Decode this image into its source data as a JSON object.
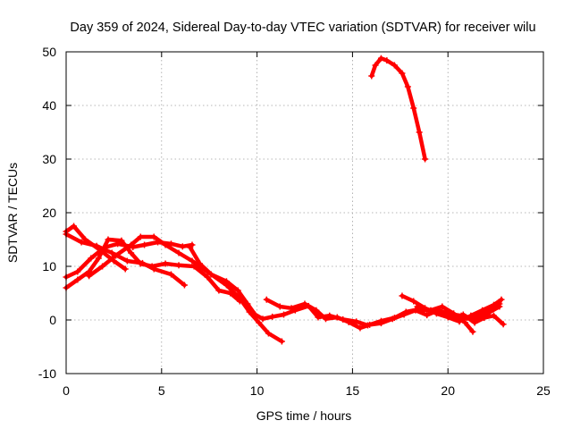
{
  "chart_data": {
    "type": "line",
    "title": "Day 359 of 2024, Sidereal Day-to-day VTEC variation (SDTVAR) for receiver wilu",
    "xlabel": "GPS time / hours",
    "ylabel": "SDTVAR / TECUs",
    "xlim": [
      0,
      25
    ],
    "ylim": [
      -10,
      50
    ],
    "x_ticks": [
      0,
      5,
      10,
      15,
      20,
      25
    ],
    "x_tick_labels": [
      "0",
      "5",
      "10",
      "15",
      "20",
      "25"
    ],
    "y_ticks": [
      -10,
      0,
      10,
      20,
      30,
      40,
      50
    ],
    "y_tick_labels": [
      "-10",
      "0",
      "10",
      "20",
      "30",
      "40",
      "50"
    ],
    "grid": true,
    "legend": "none",
    "colors": {
      "series": "#ff0000",
      "grid": "#a0a0a0",
      "axis": "#000000",
      "text": "#000000"
    },
    "series": [
      {
        "name": "trace-1",
        "points": [
          [
            0.0,
            16.5
          ],
          [
            0.4,
            17.5
          ],
          [
            1.0,
            15.0
          ],
          [
            1.8,
            13.0
          ],
          [
            2.5,
            11.0
          ],
          [
            3.1,
            9.5
          ]
        ]
      },
      {
        "name": "trace-2",
        "points": [
          [
            0.0,
            16.0
          ],
          [
            0.8,
            14.5
          ],
          [
            1.6,
            13.8
          ],
          [
            2.4,
            12.5
          ],
          [
            3.2,
            11.0
          ],
          [
            4.0,
            10.6
          ],
          [
            4.6,
            9.5
          ],
          [
            5.5,
            8.5
          ],
          [
            6.2,
            6.5
          ]
        ]
      },
      {
        "name": "trace-3",
        "points": [
          [
            0.0,
            8.0
          ],
          [
            0.6,
            9.0
          ],
          [
            1.3,
            11.5
          ],
          [
            2.0,
            13.5
          ],
          [
            2.7,
            14.2
          ],
          [
            3.5,
            13.6
          ],
          [
            4.1,
            14.0
          ],
          [
            4.8,
            14.5
          ],
          [
            5.5,
            14.2
          ],
          [
            6.1,
            13.7
          ],
          [
            6.6,
            14.0
          ]
        ]
      },
      {
        "name": "trace-4",
        "points": [
          [
            0.0,
            6.0
          ],
          [
            0.6,
            7.5
          ],
          [
            1.2,
            9.0
          ],
          [
            1.7,
            11.5
          ],
          [
            2.2,
            15.0
          ],
          [
            2.9,
            14.8
          ],
          [
            3.4,
            12.5
          ],
          [
            3.9,
            10.5
          ],
          [
            4.5,
            10.0
          ],
          [
            5.2,
            10.5
          ],
          [
            5.9,
            10.2
          ],
          [
            6.7,
            10.0
          ],
          [
            7.4,
            8.0
          ],
          [
            8.0,
            5.5
          ],
          [
            8.6,
            5.0
          ],
          [
            9.1,
            3.5
          ]
        ]
      },
      {
        "name": "trace-5",
        "points": [
          [
            1.2,
            8.2
          ],
          [
            1.9,
            10.0
          ],
          [
            2.6,
            12.0
          ],
          [
            3.4,
            14.0
          ],
          [
            3.9,
            15.5
          ],
          [
            4.6,
            15.5
          ],
          [
            5.2,
            14.0
          ],
          [
            5.9,
            12.5
          ],
          [
            6.6,
            11.0
          ],
          [
            7.4,
            9.0
          ],
          [
            8.4,
            6.5
          ],
          [
            9.1,
            4.0
          ],
          [
            9.6,
            1.5
          ],
          [
            10.1,
            -0.5
          ],
          [
            10.6,
            -2.5
          ],
          [
            11.3,
            -4.0
          ]
        ]
      },
      {
        "name": "trace-6",
        "points": [
          [
            6.5,
            13.5
          ],
          [
            7.0,
            10.5
          ],
          [
            7.6,
            8.5
          ],
          [
            8.4,
            7.2
          ],
          [
            9.0,
            5.5
          ],
          [
            9.5,
            3.0
          ],
          [
            9.9,
            1.0
          ],
          [
            10.3,
            0.2
          ],
          [
            10.8,
            0.6
          ],
          [
            11.4,
            1.0
          ],
          [
            12.0,
            1.8
          ],
          [
            12.7,
            2.6
          ],
          [
            13.2,
            0.5
          ],
          [
            13.8,
            0.8
          ],
          [
            14.5,
            0.1
          ],
          [
            15.2,
            -0.3
          ],
          [
            15.8,
            -1.0
          ],
          [
            16.5,
            -0.2
          ],
          [
            17.2,
            0.4
          ],
          [
            17.8,
            1.5
          ],
          [
            18.5,
            2.0
          ],
          [
            19.1,
            1.7
          ],
          [
            19.8,
            1.2
          ],
          [
            20.4,
            0.6
          ],
          [
            21.0,
            0.4
          ],
          [
            21.6,
            0.2
          ],
          [
            22.2,
            1.5
          ],
          [
            22.7,
            2.5
          ]
        ]
      },
      {
        "name": "trace-7",
        "points": [
          [
            10.5,
            3.8
          ],
          [
            11.2,
            2.5
          ],
          [
            11.8,
            2.2
          ],
          [
            12.5,
            3.0
          ],
          [
            13.1,
            1.8
          ],
          [
            13.6,
            0.2
          ],
          [
            14.2,
            0.5
          ],
          [
            14.8,
            -0.4
          ],
          [
            15.4,
            -1.5
          ],
          [
            15.9,
            -0.9
          ],
          [
            16.5,
            -0.6
          ],
          [
            17.1,
            0.2
          ],
          [
            17.7,
            1.0
          ],
          [
            18.3,
            1.8
          ],
          [
            18.9,
            0.9
          ],
          [
            19.5,
            1.8
          ],
          [
            20.1,
            1.1
          ],
          [
            20.7,
            0.8
          ],
          [
            21.2,
            0.2
          ],
          [
            21.7,
            0.9
          ],
          [
            22.2,
            1.8
          ],
          [
            22.7,
            3.0
          ]
        ]
      },
      {
        "name": "trace-8",
        "points": [
          [
            17.6,
            4.5
          ],
          [
            18.2,
            3.5
          ],
          [
            18.8,
            2.2
          ],
          [
            19.4,
            1.2
          ],
          [
            20.0,
            0.5
          ],
          [
            20.6,
            -0.3
          ],
          [
            21.2,
            0.8
          ],
          [
            21.8,
            1.8
          ],
          [
            22.4,
            2.8
          ],
          [
            22.8,
            3.8
          ]
        ]
      },
      {
        "name": "trace-9",
        "points": [
          [
            18.4,
            2.5
          ],
          [
            19.1,
            1.8
          ],
          [
            19.7,
            2.5
          ],
          [
            20.3,
            1.2
          ],
          [
            20.9,
            -0.5
          ],
          [
            21.3,
            -2.2
          ]
        ]
      },
      {
        "name": "trace-10",
        "points": [
          [
            20.8,
            1.0
          ],
          [
            21.4,
            -0.5
          ],
          [
            21.9,
            0.4
          ],
          [
            22.4,
            0.8
          ],
          [
            22.9,
            -0.8
          ]
        ]
      },
      {
        "name": "trace-11",
        "points": [
          [
            16.0,
            45.5
          ],
          [
            16.2,
            47.5
          ],
          [
            16.5,
            48.8
          ],
          [
            16.8,
            48.4
          ],
          [
            17.2,
            47.5
          ],
          [
            17.6,
            46.0
          ],
          [
            17.9,
            43.5
          ],
          [
            18.2,
            39.5
          ],
          [
            18.5,
            35.0
          ],
          [
            18.8,
            30.0
          ]
        ]
      }
    ]
  }
}
